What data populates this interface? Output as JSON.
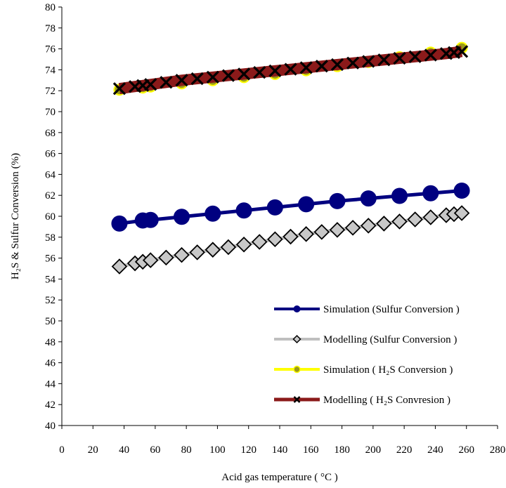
{
  "chart_data": {
    "type": "line",
    "xlabel": "Acid gas temperature ( °C )",
    "ylabel": "H₂S & Sulfur Conversion (%)",
    "xlim": [
      0,
      280
    ],
    "ylim": [
      40,
      80
    ],
    "xticks": [
      0,
      20,
      40,
      60,
      80,
      100,
      120,
      140,
      160,
      180,
      200,
      220,
      240,
      260,
      280
    ],
    "yticks": [
      40,
      42,
      44,
      46,
      48,
      50,
      52,
      54,
      56,
      58,
      60,
      62,
      64,
      66,
      68,
      70,
      72,
      74,
      76,
      78,
      80
    ],
    "grid": false,
    "legend_position": "bottom-right",
    "series": [
      {
        "name": "Simulation (Sulfur Conversion )",
        "color": "#000080",
        "marker": "circle",
        "line": true,
        "x": [
          37,
          52,
          57,
          77,
          97,
          117,
          137,
          157,
          177,
          197,
          217,
          237,
          257
        ],
        "y": [
          59.3,
          59.6,
          59.65,
          59.95,
          60.25,
          60.55,
          60.85,
          61.15,
          61.45,
          61.7,
          61.95,
          62.2,
          62.45
        ]
      },
      {
        "name": "Modelling (Sulfur Conversion )",
        "color": "#bfbfbf",
        "marker": "diamond",
        "line": true,
        "x": [
          37,
          47,
          52,
          57,
          67,
          77,
          87,
          97,
          107,
          117,
          127,
          137,
          147,
          157,
          167,
          177,
          187,
          197,
          207,
          217,
          227,
          237,
          247,
          252,
          257
        ],
        "y": [
          55.2,
          55.5,
          55.65,
          55.8,
          56.05,
          56.3,
          56.55,
          56.8,
          57.05,
          57.3,
          57.55,
          57.8,
          58.05,
          58.3,
          58.5,
          58.7,
          58.9,
          59.1,
          59.3,
          59.5,
          59.7,
          59.9,
          60.1,
          60.2,
          60.3
        ]
      },
      {
        "name": "Simulation ( H₂S  Conversion )",
        "color": "#ffff00",
        "marker": "circle-small",
        "line": true,
        "x": [
          37,
          52,
          57,
          77,
          97,
          117,
          137,
          157,
          177,
          197,
          217,
          237,
          257
        ],
        "y": [
          72.1,
          72.3,
          72.4,
          72.7,
          73.0,
          73.3,
          73.6,
          73.95,
          74.35,
          74.75,
          75.2,
          75.65,
          76.1
        ]
      },
      {
        "name": "Modelling ( H₂S Convresion )",
        "color": "#8b1a1a",
        "marker": "x",
        "line": true,
        "x": [
          37,
          47,
          52,
          57,
          67,
          77,
          87,
          97,
          107,
          117,
          127,
          137,
          147,
          157,
          167,
          177,
          187,
          197,
          207,
          217,
          227,
          237,
          247,
          252,
          257
        ],
        "y": [
          72.2,
          72.4,
          72.5,
          72.6,
          72.8,
          73.0,
          73.15,
          73.3,
          73.45,
          73.6,
          73.75,
          73.9,
          74.05,
          74.2,
          74.35,
          74.5,
          74.65,
          74.8,
          74.95,
          75.1,
          75.25,
          75.4,
          75.55,
          75.65,
          75.75
        ]
      }
    ]
  }
}
